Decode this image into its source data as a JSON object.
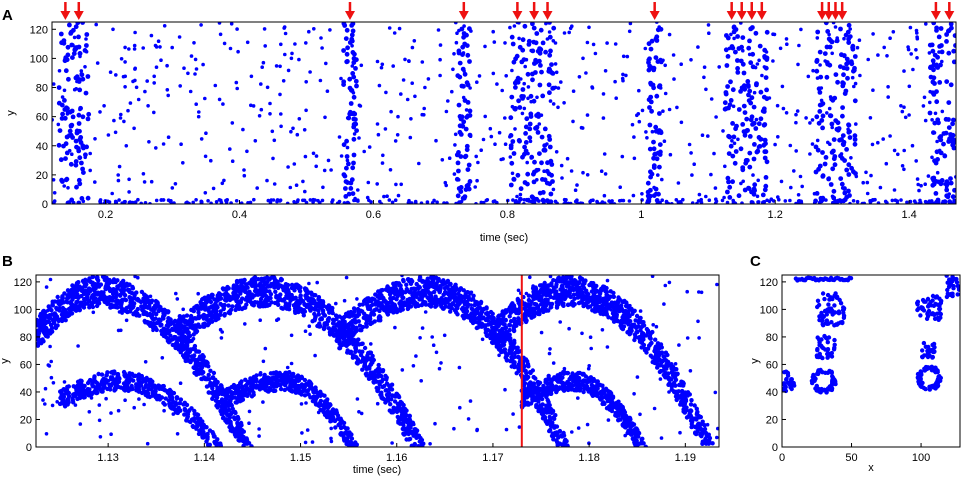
{
  "colors": {
    "points": "#0000ff",
    "marker": "#ee1111",
    "axis": "#000000"
  },
  "chart_data": [
    {
      "panel": "A",
      "type": "scatter",
      "xlabel": "time (sec)",
      "ylabel": "y",
      "xlim": [
        0.12,
        1.47
      ],
      "ylim": [
        0,
        125
      ],
      "xticks": [
        0.2,
        0.4,
        0.6,
        0.8,
        1,
        1.2,
        1.4
      ],
      "xtick_labels": [
        "0.2",
        "0.4",
        "0.6",
        "0.8",
        "1",
        "1.2",
        "1.4"
      ],
      "yticks": [
        0,
        20,
        40,
        60,
        80,
        100,
        120
      ],
      "ytick_labels": [
        "0",
        "20",
        "40",
        "60",
        "80",
        "100",
        "120"
      ],
      "burst_arrows_time": [
        0.14,
        0.16,
        0.565,
        0.735,
        0.815,
        0.84,
        0.86,
        1.02,
        1.135,
        1.15,
        1.165,
        1.18,
        1.27,
        1.28,
        1.29,
        1.3,
        1.44,
        1.46
      ],
      "dense_bands": [
        {
          "x": [
            0.13,
            0.175
          ],
          "y": [
            0,
            125
          ]
        },
        {
          "x": [
            0.555,
            0.575
          ],
          "y": [
            0,
            125
          ]
        },
        {
          "x": [
            0.725,
            0.745
          ],
          "y": [
            0,
            125
          ]
        },
        {
          "x": [
            0.805,
            0.87
          ],
          "y": [
            0,
            125
          ]
        },
        {
          "x": [
            1.01,
            1.03
          ],
          "y": [
            0,
            125
          ]
        },
        {
          "x": [
            1.125,
            1.19
          ],
          "y": [
            0,
            125
          ]
        },
        {
          "x": [
            1.26,
            1.32
          ],
          "y": [
            0,
            125
          ]
        },
        {
          "x": [
            1.43,
            1.47
          ],
          "y": [
            0,
            125
          ]
        }
      ]
    },
    {
      "panel": "B",
      "type": "scatter",
      "xlabel": "time (sec)",
      "ylabel": "y",
      "xlim": [
        1.1225,
        1.1935
      ],
      "ylim": [
        0,
        125
      ],
      "xticks": [
        1.13,
        1.14,
        1.15,
        1.16,
        1.17,
        1.18,
        1.19
      ],
      "xtick_labels": [
        "1.13",
        "1.14",
        "1.15",
        "1.16",
        "1.17",
        "1.18",
        "1.19"
      ],
      "yticks": [
        0,
        20,
        40,
        60,
        80,
        100,
        120
      ],
      "ytick_labels": [
        "0",
        "20",
        "40",
        "60",
        "80",
        "100",
        "120"
      ],
      "marker_time": 1.173,
      "waves_upper": [
        {
          "start": 1.1225,
          "peak": 1.129,
          "end": 1.145
        },
        {
          "start": 1.137,
          "peak": 1.146,
          "end": 1.163
        },
        {
          "start": 1.154,
          "peak": 1.163,
          "end": 1.178
        },
        {
          "start": 1.17,
          "peak": 1.178,
          "end": 1.193
        }
      ],
      "waves_lower": [
        {
          "start": 1.125,
          "peak": 1.131,
          "end": 1.142
        },
        {
          "start": 1.142,
          "peak": 1.148,
          "end": 1.156
        },
        {
          "start": 1.173,
          "peak": 1.178,
          "end": 1.186
        }
      ]
    },
    {
      "panel": "C",
      "type": "scatter",
      "xlabel": "x",
      "ylabel": "y",
      "xlim": [
        0,
        128
      ],
      "ylim": [
        0,
        125
      ],
      "xticks": [
        0,
        50,
        100
      ],
      "xtick_labels": [
        "0",
        "50",
        "100"
      ],
      "yticks": [
        0,
        20,
        40,
        60,
        80,
        100,
        120
      ],
      "ytick_labels": [
        "0",
        "20",
        "40",
        "60",
        "80",
        "100",
        "120"
      ],
      "top_row": {
        "x": [
          10,
          50
        ],
        "y": 122
      },
      "rings": [
        {
          "cx": 30,
          "cy": 48,
          "r": 8
        },
        {
          "cx": 106,
          "cy": 50,
          "r": 8
        }
      ],
      "clusters": [
        {
          "x": [
            25,
            45
          ],
          "y": [
            88,
            112
          ]
        },
        {
          "x": [
            25,
            38
          ],
          "y": [
            64,
            82
          ]
        },
        {
          "x": [
            97,
            115
          ],
          "y": [
            92,
            110
          ]
        },
        {
          "x": [
            100,
            110
          ],
          "y": [
            64,
            76
          ]
        },
        {
          "x": [
            0,
            10
          ],
          "y": [
            40,
            55
          ]
        },
        {
          "x": [
            118,
            128
          ],
          "y": [
            108,
            125
          ]
        }
      ]
    }
  ]
}
